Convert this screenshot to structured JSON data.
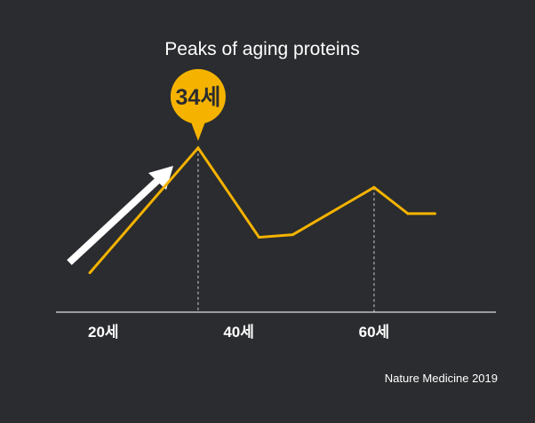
{
  "chart_data": {
    "type": "line",
    "title": "Peaks of aging proteins",
    "x": [
      18,
      34,
      43,
      48,
      60,
      65,
      69
    ],
    "series": [
      {
        "values": [
          0.05,
          1.0,
          0.32,
          0.34,
          0.7,
          0.5,
          0.5
        ]
      }
    ],
    "x_tick_labels": [
      {
        "x": 20,
        "label": "20세"
      },
      {
        "x": 40,
        "label": "40세"
      },
      {
        "x": 60,
        "label": "60세"
      }
    ],
    "xlim": [
      13,
      78
    ],
    "ylim": [
      -0.25,
      1.08
    ],
    "peak_callout": {
      "x": 34,
      "label": "34세"
    },
    "guide_lines_at_x": [
      34,
      60
    ],
    "trend_arrow": "upward",
    "source": "Nature Medicine 2019",
    "colors": {
      "background": "#2b2c2f",
      "line": "#f5b300",
      "callout": "#f5b300",
      "callout_text": "#2b2c2f",
      "text": "#ffffff",
      "axis": "#e0e0e0",
      "guide": "#cfcfcf",
      "arrow": "#ffffff"
    }
  }
}
